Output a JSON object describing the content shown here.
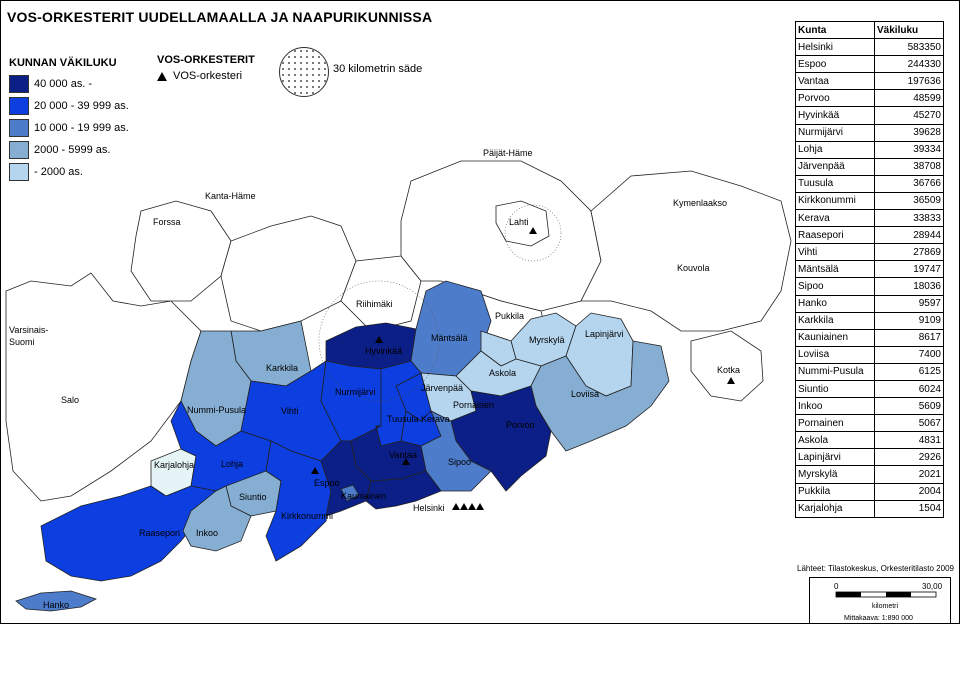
{
  "title": "VOS-ORKESTERIT UUDELLAMAALLA JA NAAPURIKUNNISSA",
  "legend": {
    "population_title": "KUNNAN VÄKILUKU",
    "classes": [
      {
        "label": "40 000 as. -",
        "color": "#0b1f86"
      },
      {
        "label": "20 000 - 39 999 as.",
        "color": "#0c3ee0"
      },
      {
        "label": "10 000 - 19 999 as.",
        "color": "#4d7ccb"
      },
      {
        "label": "2000 - 5999 as.",
        "color": "#86aed2"
      },
      {
        "label": "- 2000 as.",
        "color": "#b5d5ef"
      }
    ],
    "orchestra_title": "VOS-ORKESTERIT",
    "orchestra_label": "VOS-orkesteri",
    "circle_label": "30 kilometrin säde"
  },
  "table": {
    "headers": [
      "Kunta",
      "Väkiluku"
    ],
    "rows": [
      [
        "Helsinki",
        "583350"
      ],
      [
        "Espoo",
        "244330"
      ],
      [
        "Vantaa",
        "197636"
      ],
      [
        "Porvoo",
        "48599"
      ],
      [
        "Hyvinkää",
        "45270"
      ],
      [
        "Nurmijärvi",
        "39628"
      ],
      [
        "Lohja",
        "39334"
      ],
      [
        "Järvenpää",
        "38708"
      ],
      [
        "Tuusula",
        "36766"
      ],
      [
        "Kirkkonummi",
        "36509"
      ],
      [
        "Kerava",
        "33833"
      ],
      [
        "Raasepori",
        "28944"
      ],
      [
        "Vihti",
        "27869"
      ],
      [
        "Mäntsälä",
        "19747"
      ],
      [
        "Sipoo",
        "18036"
      ],
      [
        "Hanko",
        "9597"
      ],
      [
        "Karkkila",
        "9109"
      ],
      [
        "Kauniainen",
        "8617"
      ],
      [
        "Loviisa",
        "7400"
      ],
      [
        "Nummi-Pusula",
        "6125"
      ],
      [
        "Siuntio",
        "6024"
      ],
      [
        "Inkoo",
        "5609"
      ],
      [
        "Pornainen",
        "5067"
      ],
      [
        "Askola",
        "4831"
      ],
      [
        "Lapinjärvi",
        "2926"
      ],
      [
        "Myrskylä",
        "2021"
      ],
      [
        "Pukkila",
        "2004"
      ],
      [
        "Karjalohja",
        "1504"
      ]
    ]
  },
  "source": "Lähteet: Tilastokeskus, Orkesteritilasto 2009",
  "scale": {
    "zero": "0",
    "max": "30,00",
    "unit": "kilometri",
    "ratio": "Mittakaava:  1:890 000"
  },
  "map_labels": {
    "paijat_hame": "Päijät-Häme",
    "kanta_hame": "Kanta-Häme",
    "kymenlaakso": "Kymenlaakso",
    "varsinais_suomi_1": "Varsinais-",
    "varsinais_suomi_2": "Suomi",
    "forssa": "Forssa",
    "lahti": "Lahti",
    "kouvola": "Kouvola",
    "riihimaki": "Riihimäki",
    "salo": "Salo",
    "kotka": "Kotka",
    "hyvinkaa": "Hyvinkää",
    "mantsala": "Mäntsälä",
    "pukkila": "Pukkila",
    "myrskyla": "Myrskylä",
    "lapinjarvi": "Lapinjärvi",
    "askola": "Askola",
    "karkkila": "Karkkila",
    "nurmijarvi": "Nurmijärvi",
    "jarvenpaa": "Järvenpää",
    "pornainen": "Pornainen",
    "loviisa": "Loviisa",
    "nummi_pusula": "Nummi-Pusula",
    "vihti": "Vihti",
    "tuusula": "Tuusula",
    "kerava": "Kerava",
    "porvoo": "Porvoo",
    "karjalohja": "Karjalohja",
    "lohja": "Lohja",
    "vantaa": "Vantaa",
    "sipoo": "Sipoo",
    "siuntio": "Siuntio",
    "espoo": "Espoo",
    "kauniainen": "Kauniainen",
    "helsinki": "Helsinki",
    "kirkkonummi": "Kirkkonummi",
    "raasepori": "Raasepori",
    "inkoo": "Inkoo",
    "hanko": "Hanko"
  }
}
